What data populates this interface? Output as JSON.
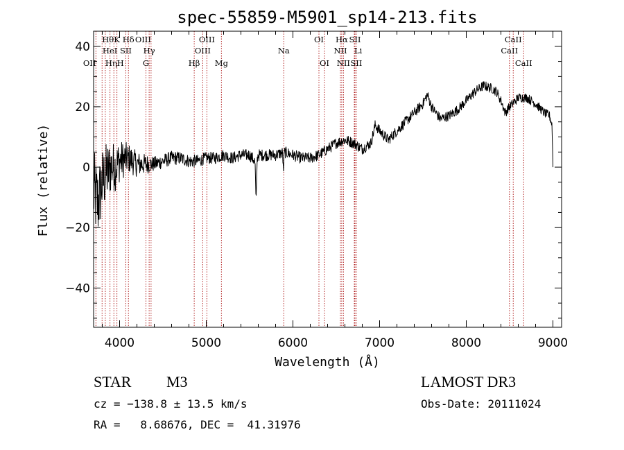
{
  "chart_data": {
    "type": "line",
    "title": "spec-55859-M5901_sp14-213.fits",
    "xlabel": "Wavelength (Å)",
    "ylabel": "Flux (relative)",
    "xlim": [
      3700,
      9100
    ],
    "ylim": [
      -53,
      45
    ],
    "xticks": [
      4000,
      5000,
      6000,
      7000,
      8000,
      9000
    ],
    "yticks": [
      -40,
      -20,
      0,
      20,
      40
    ],
    "ytick_labels": [
      "−40",
      "−20",
      "0",
      "20",
      "40"
    ],
    "series": [
      {
        "name": "spectrum",
        "anchors": [
          [
            3700,
            -8
          ],
          [
            3750,
            -12
          ],
          [
            3800,
            -5
          ],
          [
            3850,
            -2
          ],
          [
            3900,
            0
          ],
          [
            3950,
            0
          ],
          [
            4000,
            2
          ],
          [
            4100,
            3
          ],
          [
            4200,
            1
          ],
          [
            4300,
            1
          ],
          [
            4400,
            1
          ],
          [
            4500,
            2
          ],
          [
            4600,
            3
          ],
          [
            4700,
            3
          ],
          [
            4800,
            2
          ],
          [
            4900,
            2
          ],
          [
            5000,
            3
          ],
          [
            5100,
            3
          ],
          [
            5200,
            4
          ],
          [
            5300,
            3
          ],
          [
            5400,
            4
          ],
          [
            5500,
            4
          ],
          [
            5560,
            2
          ],
          [
            5600,
            4
          ],
          [
            5700,
            4
          ],
          [
            5800,
            4
          ],
          [
            5900,
            5
          ],
          [
            6000,
            4
          ],
          [
            6100,
            3
          ],
          [
            6200,
            3
          ],
          [
            6300,
            4
          ],
          [
            6400,
            6
          ],
          [
            6500,
            8
          ],
          [
            6600,
            9
          ],
          [
            6700,
            8
          ],
          [
            6800,
            6
          ],
          [
            6900,
            8
          ],
          [
            6950,
            14
          ],
          [
            7000,
            12
          ],
          [
            7100,
            9
          ],
          [
            7200,
            12
          ],
          [
            7300,
            15
          ],
          [
            7400,
            18
          ],
          [
            7500,
            21
          ],
          [
            7550,
            24
          ],
          [
            7600,
            20
          ],
          [
            7700,
            16
          ],
          [
            7800,
            17
          ],
          [
            7900,
            19
          ],
          [
            8000,
            22
          ],
          [
            8100,
            25
          ],
          [
            8200,
            27
          ],
          [
            8300,
            26
          ],
          [
            8350,
            25
          ],
          [
            8400,
            22
          ],
          [
            8450,
            18
          ],
          [
            8500,
            20
          ],
          [
            8600,
            23
          ],
          [
            8700,
            23
          ],
          [
            8800,
            21
          ],
          [
            8900,
            18
          ],
          [
            8960,
            17
          ],
          [
            8990,
            14
          ],
          [
            9000,
            0
          ]
        ],
        "absorption_dips": [
          {
            "x": 5575,
            "depth": 14,
            "width": 8
          },
          {
            "x": 5890,
            "depth": 6,
            "width": 6
          }
        ],
        "noise_amplitude": [
          [
            3700,
            14
          ],
          [
            3900,
            9
          ],
          [
            4100,
            5
          ],
          [
            4400,
            2.5
          ],
          [
            5000,
            2
          ],
          [
            7000,
            1.8
          ],
          [
            9000,
            1.5
          ]
        ]
      }
    ],
    "spectral_lines": [
      {
        "x": 3727,
        "label": "OII",
        "row": 3,
        "align": "end"
      },
      {
        "x": 3798,
        "label": "Hθ",
        "row": 1,
        "align": "start"
      },
      {
        "x": 3835,
        "label": "Hη",
        "row": 3,
        "align": "start"
      },
      {
        "x": 3889,
        "label": "HeI",
        "row": 2,
        "align": "middle"
      },
      {
        "x": 3934,
        "label": "K",
        "row": 1,
        "align": "start"
      },
      {
        "x": 3969,
        "label": "H",
        "row": 3,
        "align": "start"
      },
      {
        "x": 4072,
        "label": "SII",
        "row": 2,
        "align": "middle"
      },
      {
        "x": 4102,
        "label": "Hδ",
        "row": 1,
        "align": "middle"
      },
      {
        "x": 4304,
        "label": "G",
        "row": 3,
        "align": "middle"
      },
      {
        "x": 4341,
        "label": "Hγ",
        "row": 2,
        "align": "middle"
      },
      {
        "x": 4363,
        "label": "OIII",
        "row": 1,
        "align": "end"
      },
      {
        "x": 4861,
        "label": "Hβ",
        "row": 3,
        "align": "middle"
      },
      {
        "x": 4959,
        "label": "OIII",
        "row": 2,
        "align": "middle"
      },
      {
        "x": 5007,
        "label": "OIII",
        "row": 1,
        "align": "middle"
      },
      {
        "x": 5175,
        "label": "Mg",
        "row": 3,
        "align": "middle"
      },
      {
        "x": 5894,
        "label": "Na",
        "row": 2,
        "align": "middle"
      },
      {
        "x": 6300,
        "label": "OI",
        "row": 1,
        "align": "middle"
      },
      {
        "x": 6364,
        "label": "OI",
        "row": 3,
        "align": "middle"
      },
      {
        "x": 6548,
        "label": "NII",
        "row": 2,
        "align": "middle"
      },
      {
        "x": 6563,
        "label": "Hα",
        "row": 1,
        "align": "middle"
      },
      {
        "x": 6583,
        "label": "NII",
        "row": 3,
        "align": "middle"
      },
      {
        "x": 6708,
        "label": "Li",
        "row": 2,
        "align": "start"
      },
      {
        "x": 6716,
        "label": "SII",
        "row": 1,
        "align": "middle"
      },
      {
        "x": 6731,
        "label": "SII",
        "row": 3,
        "align": "middle"
      },
      {
        "x": 8498,
        "label": "CaII",
        "row": 2,
        "align": "middle"
      },
      {
        "x": 8542,
        "label": "CaII",
        "row": 1,
        "align": "middle"
      },
      {
        "x": 8662,
        "label": "CaII",
        "row": 3,
        "align": "middle"
      }
    ]
  },
  "footer": {
    "object_class": "STAR",
    "subclass": "M3",
    "survey": "LAMOST DR3",
    "cz": "cz = −138.8 ± 13.5 km/s",
    "obs_date": "Obs-Date: 20111024",
    "coords": "RA =   8.68676, DEC =  41.31976"
  },
  "colors": {
    "axis": "#000000",
    "spectrum": "#000000",
    "line_markers": "#b22222"
  }
}
